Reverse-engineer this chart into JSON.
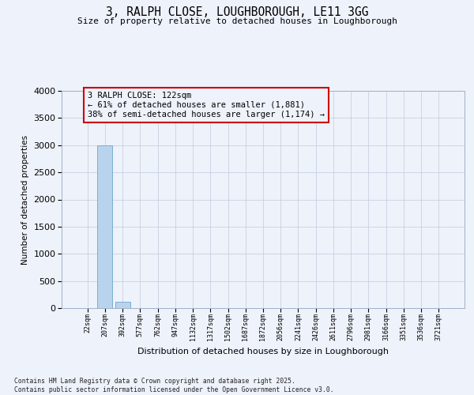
{
  "title": "3, RALPH CLOSE, LOUGHBOROUGH, LE11 3GG",
  "subtitle": "Size of property relative to detached houses in Loughborough",
  "xlabel": "Distribution of detached houses by size in Loughborough",
  "ylabel": "Number of detached properties",
  "categories": [
    "22sqm",
    "207sqm",
    "392sqm",
    "577sqm",
    "762sqm",
    "947sqm",
    "1132sqm",
    "1317sqm",
    "1502sqm",
    "1687sqm",
    "1872sqm",
    "2056sqm",
    "2241sqm",
    "2426sqm",
    "2611sqm",
    "2796sqm",
    "2981sqm",
    "3166sqm",
    "3351sqm",
    "3536sqm",
    "3721sqm"
  ],
  "values": [
    0,
    3000,
    110,
    0,
    0,
    0,
    0,
    0,
    0,
    0,
    0,
    0,
    0,
    0,
    0,
    0,
    0,
    0,
    0,
    0,
    0
  ],
  "bar_color": "#b8d4ec",
  "bar_edge_color": "#7aaed4",
  "ylim": [
    0,
    4000
  ],
  "yticks": [
    0,
    500,
    1000,
    1500,
    2000,
    2500,
    3000,
    3500,
    4000
  ],
  "annotation_text": "3 RALPH CLOSE: 122sqm\n← 61% of detached houses are smaller (1,881)\n38% of semi-detached houses are larger (1,174) →",
  "annotation_color": "#cc0000",
  "background_color": "#eef2fa",
  "grid_color": "#c8d0e0",
  "footer_line1": "Contains HM Land Registry data © Crown copyright and database right 2025.",
  "footer_line2": "Contains public sector information licensed under the Open Government Licence v3.0."
}
